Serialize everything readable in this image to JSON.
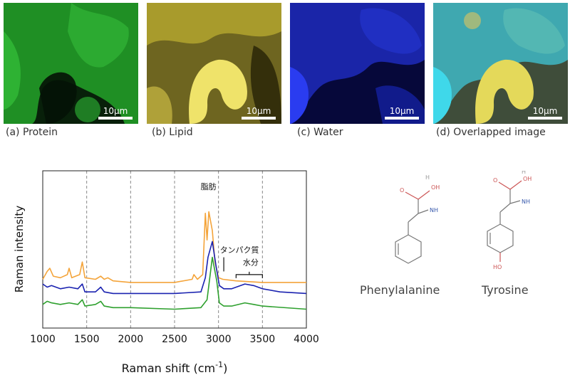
{
  "panels": [
    {
      "caption": "(a) Protein",
      "scale_label": "10µm",
      "color": "#2ea82e"
    },
    {
      "caption": "(b) Lipid",
      "scale_label": "10µm",
      "color": "#d9cf3a"
    },
    {
      "caption": "(c) Water",
      "scale_label": "10µm",
      "color": "#1f2fd6"
    },
    {
      "caption": "(d) Overlapped image",
      "scale_label": "10µm",
      "color": "#3fb8bf"
    }
  ],
  "chart_data": {
    "type": "line",
    "xlabel": "Raman shift (cm",
    "xlabel_sup": "-1",
    "xlabel_end": ")",
    "ylabel": "Raman intensity",
    "xlim": [
      1000,
      4000
    ],
    "ylim": [
      0,
      1
    ],
    "y_ticks_shown": false,
    "x_ticks": [
      1000,
      1500,
      2000,
      2500,
      3000,
      3500,
      4000
    ],
    "gridlines_x": [
      1500,
      2000,
      2500,
      3000,
      3500
    ],
    "grid": "vertical dashed",
    "annotations": [
      {
        "text": "脂肪",
        "x": 2870
      },
      {
        "text": "タンパク質",
        "x": 3060
      },
      {
        "text": "水分",
        "x": 3350,
        "range": [
          3200,
          3500
        ]
      }
    ],
    "series": [
      {
        "color": "#f4a43a",
        "points": [
          [
            1000,
            0.31
          ],
          [
            1050,
            0.36
          ],
          [
            1080,
            0.38
          ],
          [
            1120,
            0.33
          ],
          [
            1200,
            0.32
          ],
          [
            1280,
            0.34
          ],
          [
            1300,
            0.38
          ],
          [
            1330,
            0.32
          ],
          [
            1420,
            0.34
          ],
          [
            1450,
            0.42
          ],
          [
            1480,
            0.32
          ],
          [
            1600,
            0.31
          ],
          [
            1660,
            0.33
          ],
          [
            1700,
            0.31
          ],
          [
            1740,
            0.32
          ],
          [
            1800,
            0.3
          ],
          [
            2000,
            0.29
          ],
          [
            2500,
            0.29
          ],
          [
            2700,
            0.31
          ],
          [
            2720,
            0.34
          ],
          [
            2760,
            0.31
          ],
          [
            2820,
            0.34
          ],
          [
            2850,
            0.73
          ],
          [
            2870,
            0.56
          ],
          [
            2890,
            0.74
          ],
          [
            2930,
            0.62
          ],
          [
            2960,
            0.42
          ],
          [
            3000,
            0.32
          ],
          [
            3050,
            0.31
          ],
          [
            3200,
            0.3
          ],
          [
            3500,
            0.29
          ],
          [
            4000,
            0.29
          ]
        ]
      },
      {
        "color": "#1a22b0",
        "points": [
          [
            1000,
            0.28
          ],
          [
            1050,
            0.26
          ],
          [
            1100,
            0.27
          ],
          [
            1200,
            0.25
          ],
          [
            1300,
            0.26
          ],
          [
            1400,
            0.25
          ],
          [
            1450,
            0.28
          ],
          [
            1480,
            0.23
          ],
          [
            1600,
            0.23
          ],
          [
            1660,
            0.26
          ],
          [
            1700,
            0.23
          ],
          [
            1800,
            0.22
          ],
          [
            2000,
            0.22
          ],
          [
            2500,
            0.22
          ],
          [
            2800,
            0.23
          ],
          [
            2850,
            0.32
          ],
          [
            2880,
            0.45
          ],
          [
            2930,
            0.55
          ],
          [
            2970,
            0.4
          ],
          [
            3010,
            0.27
          ],
          [
            3060,
            0.25
          ],
          [
            3150,
            0.25
          ],
          [
            3300,
            0.28
          ],
          [
            3400,
            0.27
          ],
          [
            3500,
            0.25
          ],
          [
            3700,
            0.23
          ],
          [
            4000,
            0.22
          ]
        ]
      },
      {
        "color": "#2ea02e",
        "points": [
          [
            1000,
            0.15
          ],
          [
            1050,
            0.17
          ],
          [
            1100,
            0.16
          ],
          [
            1200,
            0.15
          ],
          [
            1300,
            0.16
          ],
          [
            1400,
            0.15
          ],
          [
            1450,
            0.18
          ],
          [
            1480,
            0.14
          ],
          [
            1600,
            0.15
          ],
          [
            1660,
            0.17
          ],
          [
            1700,
            0.14
          ],
          [
            1800,
            0.13
          ],
          [
            2000,
            0.13
          ],
          [
            2500,
            0.12
          ],
          [
            2800,
            0.13
          ],
          [
            2870,
            0.18
          ],
          [
            2930,
            0.45
          ],
          [
            2980,
            0.3
          ],
          [
            3010,
            0.16
          ],
          [
            3060,
            0.14
          ],
          [
            3150,
            0.14
          ],
          [
            3300,
            0.16
          ],
          [
            3400,
            0.15
          ],
          [
            3500,
            0.14
          ],
          [
            4000,
            0.12
          ]
        ]
      }
    ]
  },
  "molecules": [
    {
      "name": "Phenylalanine",
      "oh_label": "OH",
      "h_label": "H",
      "o_label": "O",
      "nh_label": "NH"
    },
    {
      "name": "Tyrosine",
      "oh_label": "OH",
      "h_label": "H",
      "o_label": "O",
      "nh_label": "NH",
      "ho_label": "HO"
    }
  ]
}
